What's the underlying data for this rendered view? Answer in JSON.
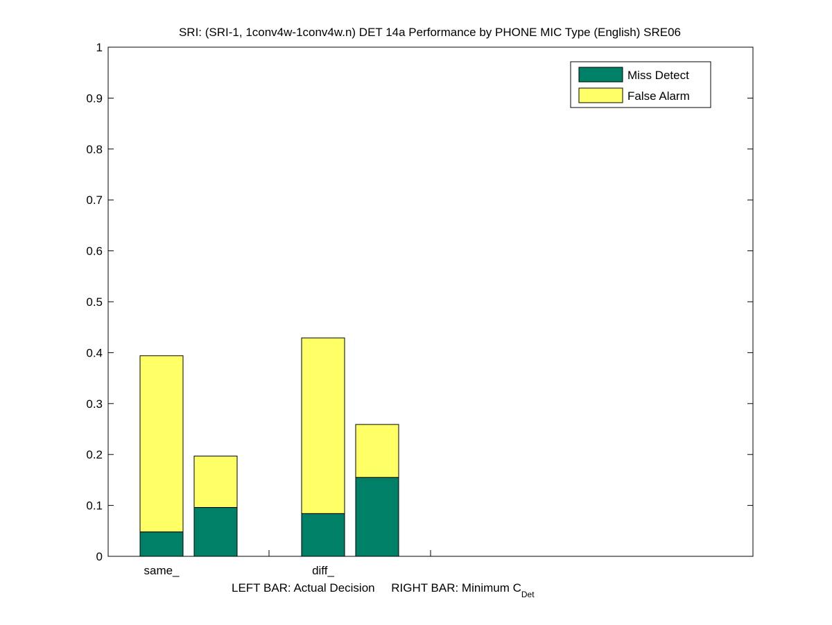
{
  "chart_data": {
    "type": "bar",
    "title": "SRI: (SRI-1, 1conv4w-1conv4w.n) DET 14a Performance by PHONE MIC Type (English) SRE06",
    "xlabel": "LEFT BAR: Actual Decision     RIGHT BAR: Minimum C",
    "xlabel_sub": "Det",
    "categories": [
      "same_",
      "diff_"
    ],
    "ylim": [
      0,
      1
    ],
    "yticks": [
      "0",
      "0.1",
      "0.2",
      "0.3",
      "0.4",
      "0.5",
      "0.6",
      "0.7",
      "0.8",
      "0.9",
      "1"
    ],
    "stacked": true,
    "bars_per_category": [
      "Actual Decision",
      "Minimum C_Det"
    ],
    "series": [
      {
        "name": "Miss Detect",
        "color": "#008066",
        "values": [
          [
            0.048,
            0.096
          ],
          [
            0.084,
            0.155
          ]
        ]
      },
      {
        "name": "False Alarm",
        "color": "#ffff66",
        "values": [
          [
            0.346,
            0.101
          ],
          [
            0.345,
            0.104
          ]
        ]
      }
    ],
    "legend": "top-right",
    "grid": false
  }
}
